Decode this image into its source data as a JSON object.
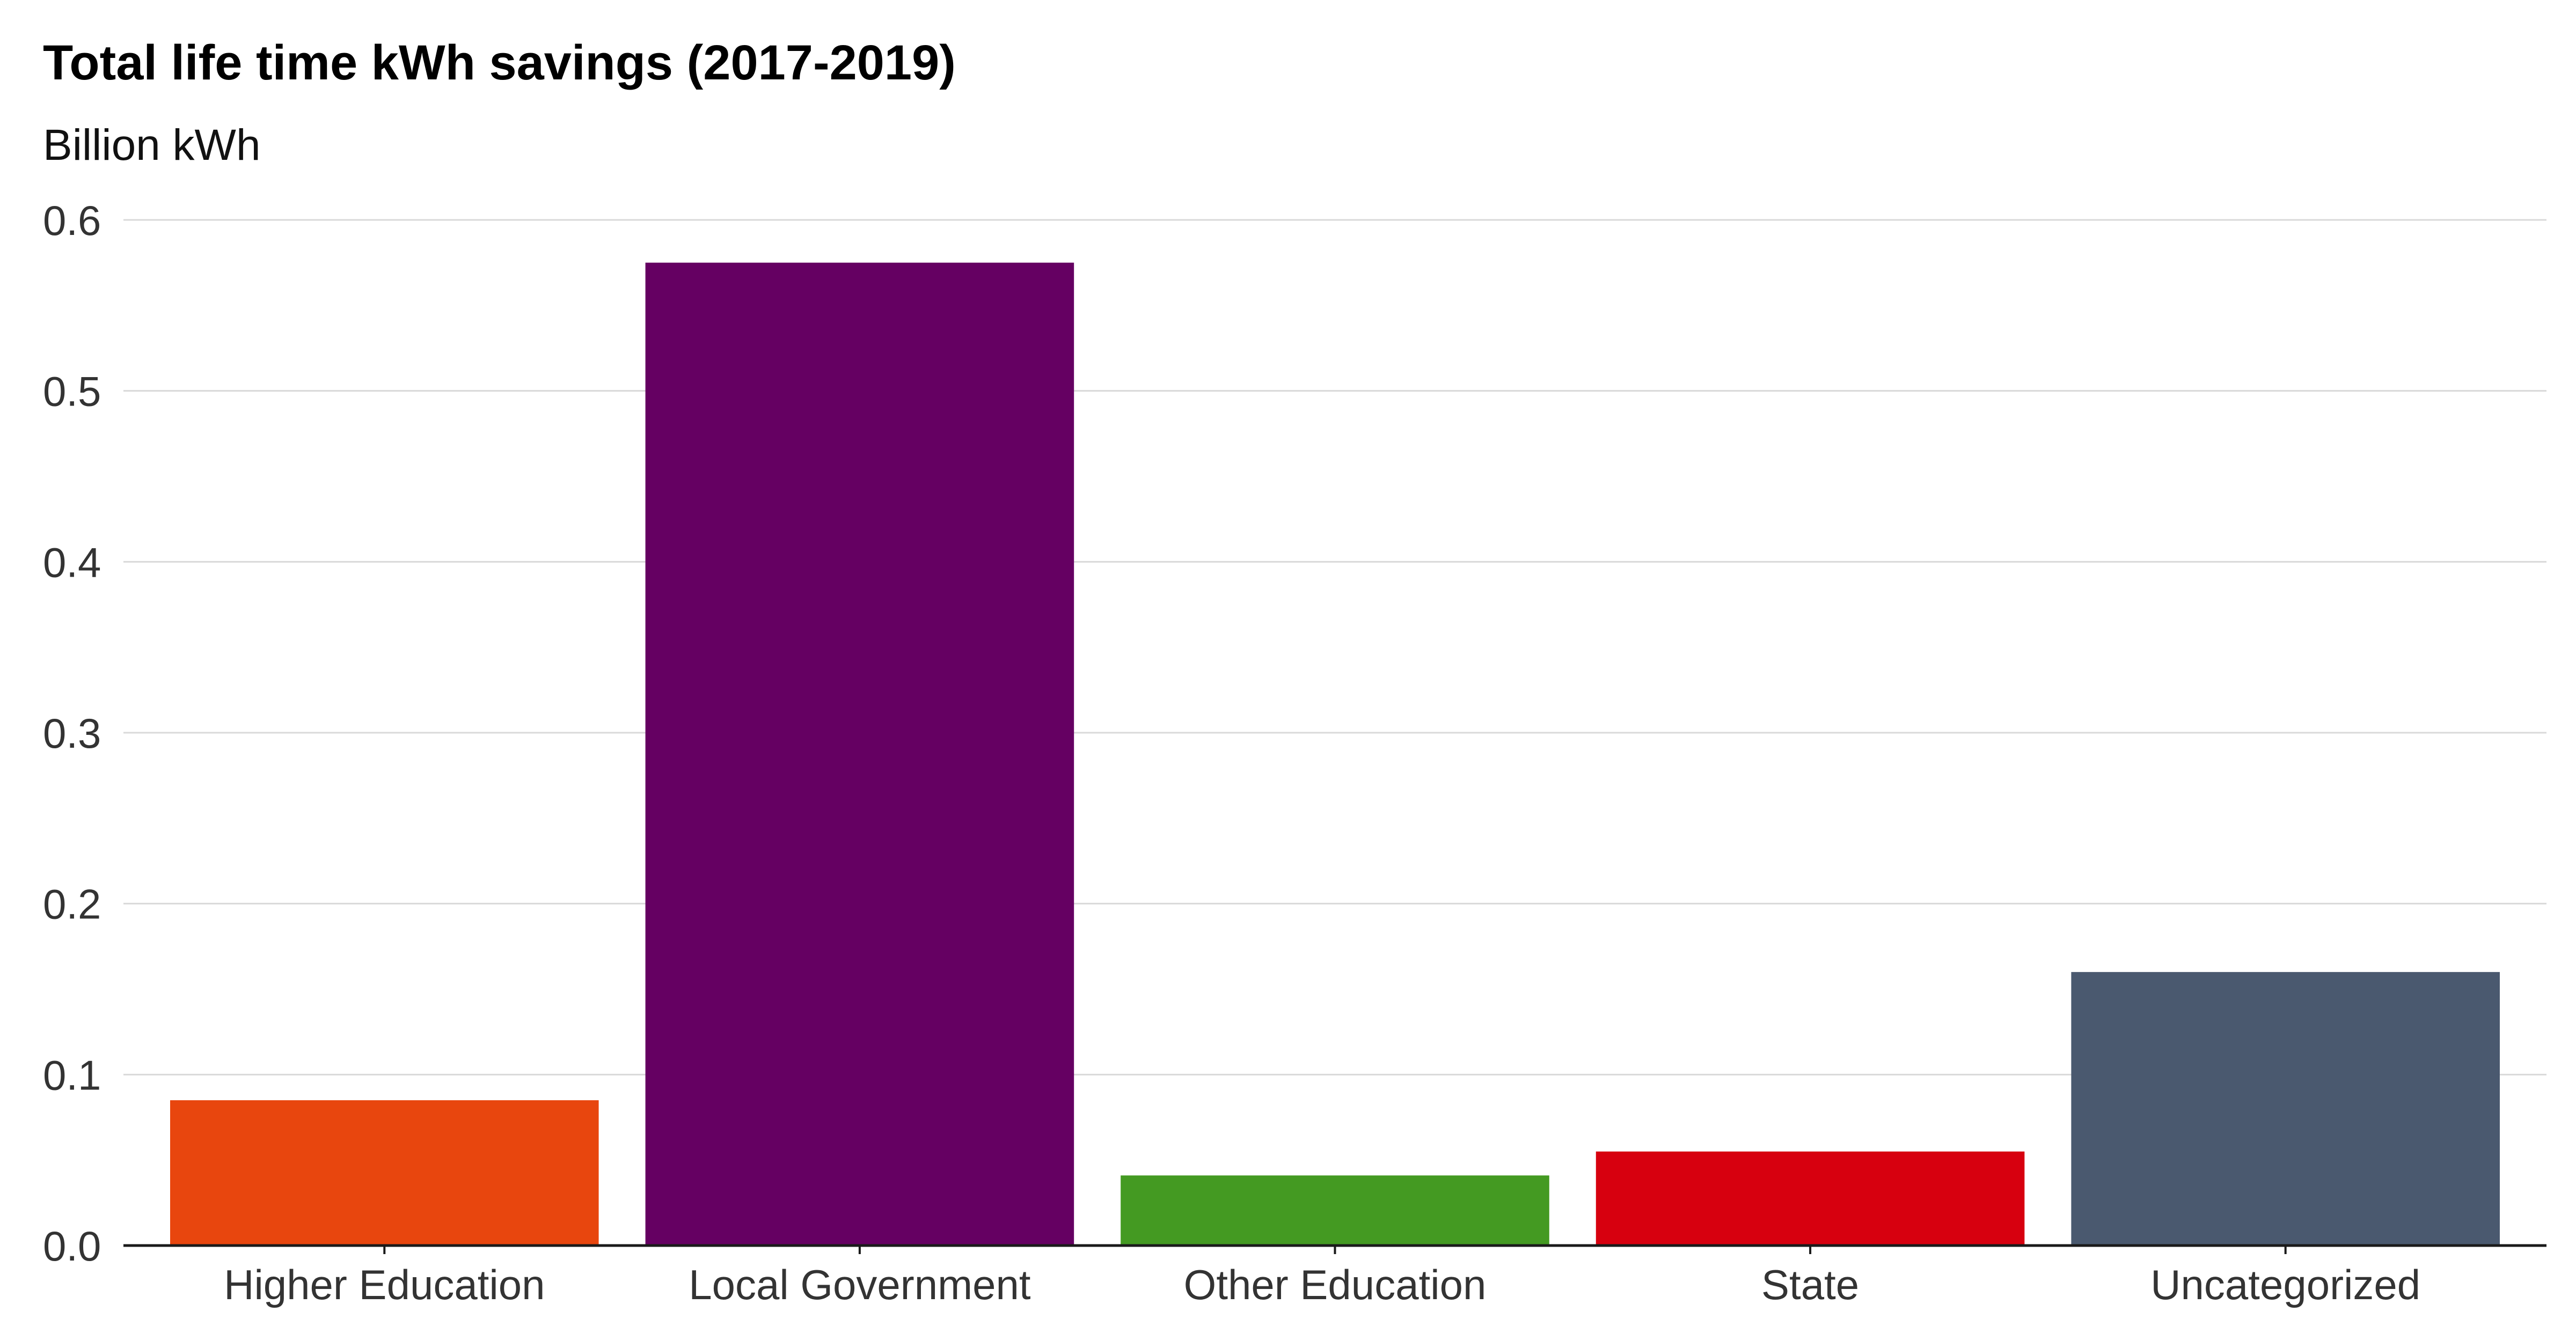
{
  "chart_data": {
    "type": "bar",
    "title": "Total life time kWh savings (2017-2019)",
    "subtitle": "Billion kWh",
    "xlabel": "",
    "ylabel": "",
    "categories": [
      "Higher Education",
      "Local Government",
      "Other Education",
      "State",
      "Uncategorized"
    ],
    "values": [
      0.085,
      0.575,
      0.041,
      0.055,
      0.16
    ],
    "colors": [
      "#e8460e",
      "#650062",
      "#449a22",
      "#d7000f",
      "#4a596f"
    ],
    "ylim": [
      0,
      0.6
    ],
    "yticks": [
      0.0,
      0.1,
      0.2,
      0.3,
      0.4,
      0.5,
      0.6
    ],
    "ytick_labels": [
      "0.0",
      "0.1",
      "0.2",
      "0.3",
      "0.4",
      "0.5",
      "0.6"
    ],
    "grid": true,
    "legend": "none"
  }
}
